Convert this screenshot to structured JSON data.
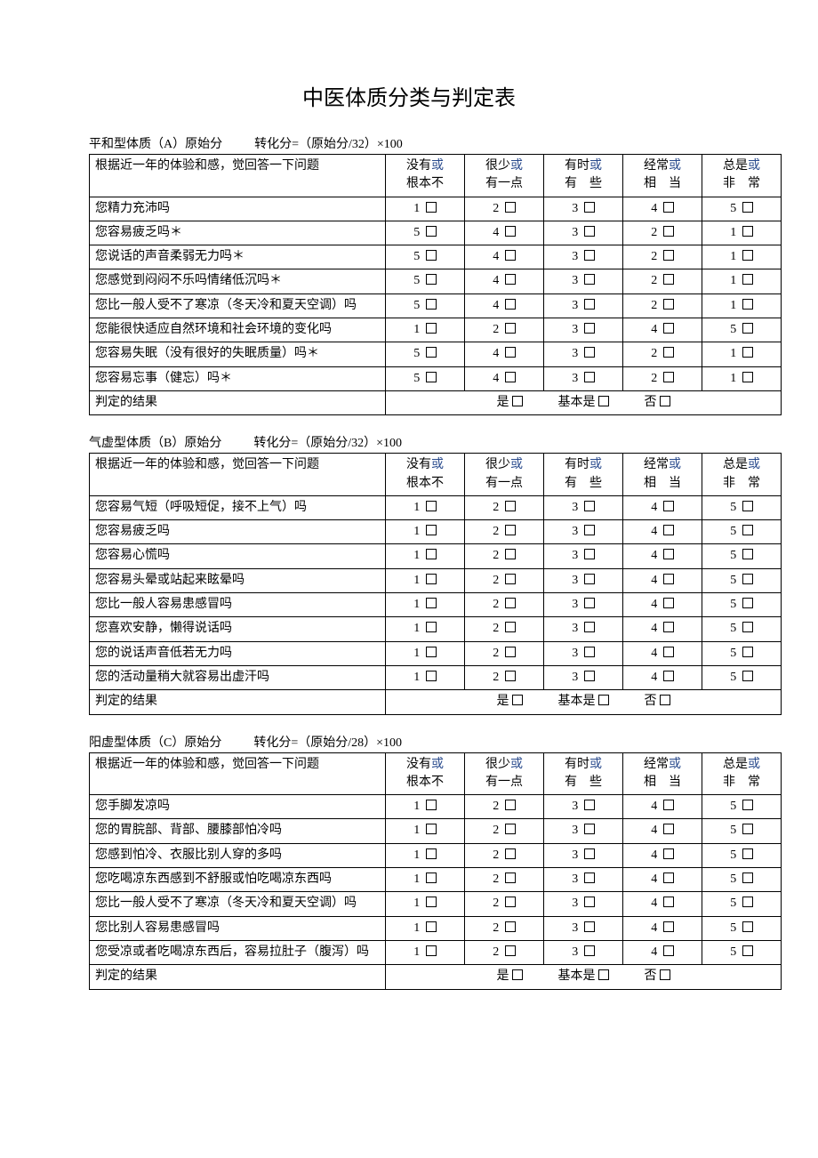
{
  "title": "中医体质分类与判定表",
  "or_word": "或",
  "checkbox_glyph": "□",
  "columns": {
    "question_header": "根据近一年的体验和感，觉回答一下问题",
    "options": [
      {
        "top": "没有",
        "bottom": "根本不"
      },
      {
        "top": "很少",
        "bottom": "有一点"
      },
      {
        "top": "有时",
        "bottom": "有　些"
      },
      {
        "top": "经常",
        "bottom": "相　当"
      },
      {
        "top": "总是",
        "bottom": "非　常"
      }
    ]
  },
  "result": {
    "label": "判定的结果",
    "yes": "是",
    "basic": "基本是",
    "no": "否"
  },
  "sections": [
    {
      "id": "A",
      "code": "A",
      "name": "平和型体质",
      "raw_label": "原始分",
      "formula": "转化分=（原始分/32）×100",
      "rows": [
        {
          "q": "您精力充沛吗",
          "scores": [
            1,
            2,
            3,
            4,
            5
          ]
        },
        {
          "q": "您容易疲乏吗＊",
          "scores": [
            5,
            4,
            3,
            2,
            1
          ]
        },
        {
          "q": "您说话的声音柔弱无力吗＊",
          "scores": [
            5,
            4,
            3,
            2,
            1
          ]
        },
        {
          "q": "您感觉到闷闷不乐吗情绪低沉吗＊",
          "scores": [
            5,
            4,
            3,
            2,
            1
          ]
        },
        {
          "q": "您比一般人受不了寒凉（冬天冷和夏天空调）吗",
          "scores": [
            5,
            4,
            3,
            2,
            1
          ]
        },
        {
          "q": "您能很快适应自然环境和社会环境的变化吗",
          "scores": [
            1,
            2,
            3,
            4,
            5
          ]
        },
        {
          "q": "您容易失眠（没有很好的失眠质量）吗＊",
          "scores": [
            5,
            4,
            3,
            2,
            1
          ]
        },
        {
          "q": "您容易忘事（健忘）吗＊",
          "scores": [
            5,
            4,
            3,
            2,
            1
          ]
        }
      ]
    },
    {
      "id": "B",
      "code": "B",
      "name": "气虚型体质",
      "raw_label": "原始分",
      "formula": "转化分=（原始分/32）×100",
      "rows": [
        {
          "q": "您容易气短（呼吸短促，接不上气）吗",
          "scores": [
            1,
            2,
            3,
            4,
            5
          ]
        },
        {
          "q": "您容易疲乏吗",
          "scores": [
            1,
            2,
            3,
            4,
            5
          ]
        },
        {
          "q": "您容易心慌吗",
          "scores": [
            1,
            2,
            3,
            4,
            5
          ]
        },
        {
          "q": "您容易头晕或站起来眩晕吗",
          "scores": [
            1,
            2,
            3,
            4,
            5
          ]
        },
        {
          "q": "您比一般人容易患感冒吗",
          "scores": [
            1,
            2,
            3,
            4,
            5
          ]
        },
        {
          "q": "您喜欢安静，懒得说话吗",
          "scores": [
            1,
            2,
            3,
            4,
            5
          ]
        },
        {
          "q": "您的说话声音低若无力吗",
          "scores": [
            1,
            2,
            3,
            4,
            5
          ]
        },
        {
          "q": "您的活动量稍大就容易出虚汗吗",
          "scores": [
            1,
            2,
            3,
            4,
            5
          ]
        }
      ]
    },
    {
      "id": "C",
      "code": "C",
      "name": "阳虚型体质",
      "raw_label": "原始分",
      "formula": "转化分=（原始分/28）×100",
      "rows": [
        {
          "q": "您手脚发凉吗",
          "scores": [
            1,
            2,
            3,
            4,
            5
          ]
        },
        {
          "q": "您的胃脘部、背部、腰膝部怕冷吗",
          "scores": [
            1,
            2,
            3,
            4,
            5
          ]
        },
        {
          "q": "您感到怕冷、衣服比别人穿的多吗",
          "scores": [
            1,
            2,
            3,
            4,
            5
          ]
        },
        {
          "q": "您吃喝凉东西感到不舒服或怕吃喝凉东西吗",
          "scores": [
            1,
            2,
            3,
            4,
            5
          ]
        },
        {
          "q": "您比一般人受不了寒凉（冬天冷和夏天空调）吗",
          "scores": [
            1,
            2,
            3,
            4,
            5
          ]
        },
        {
          "q": "您比别人容易患感冒吗",
          "scores": [
            1,
            2,
            3,
            4,
            5
          ]
        },
        {
          "q": "您受凉或者吃喝凉东西后，容易拉肚子（腹泻）吗",
          "scores": [
            1,
            2,
            3,
            4,
            5
          ]
        }
      ]
    }
  ]
}
